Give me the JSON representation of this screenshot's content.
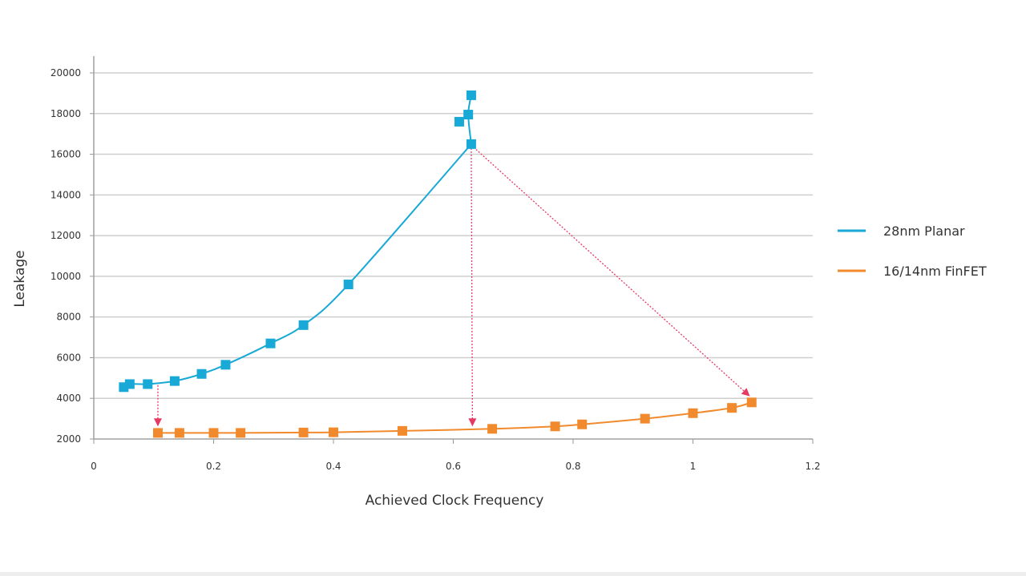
{
  "chart_data": {
    "type": "scatter",
    "xlabel": "Achieved Clock Frequency",
    "ylabel": "Leakage",
    "xlim": [
      0,
      1.2
    ],
    "ylim": [
      2000,
      20000
    ],
    "xticks": [
      "0",
      "0.2",
      "0.4",
      "0.6",
      "0.8",
      "1",
      "1.2"
    ],
    "yticks": [
      "2000",
      "4000",
      "6000",
      "8000",
      "10000",
      "12000",
      "14000",
      "16000",
      "18000",
      "20000"
    ],
    "grid": "horizontal",
    "legend": "right",
    "series": [
      {
        "name": "28nm Planar",
        "color": "#19a9d6",
        "x": [
          0.05,
          0.06,
          0.09,
          0.135,
          0.18,
          0.22,
          0.295,
          0.35,
          0.425,
          0.61,
          0.625,
          0.63,
          0.63
        ],
        "y": [
          4550,
          4700,
          4700,
          4850,
          5200,
          5650,
          6700,
          7600,
          9600,
          17600,
          17950,
          18900,
          16500
        ]
      },
      {
        "name": "16/14nm FinFET",
        "color": "#f08a2c",
        "x": [
          0.107,
          0.143,
          0.2,
          0.245,
          0.35,
          0.4,
          0.515,
          0.665,
          0.77,
          0.815,
          0.92,
          1.0,
          1.065,
          1.098
        ],
        "y": [
          2300,
          2300,
          2300,
          2300,
          2320,
          2330,
          2400,
          2500,
          2620,
          2720,
          3000,
          3270,
          3530,
          3800
        ]
      }
    ],
    "annotations": [
      {
        "type": "arrow",
        "from": [
          0.107,
          4650
        ],
        "to": [
          0.107,
          2620
        ]
      },
      {
        "type": "arrow",
        "from": [
          0.63,
          16300
        ],
        "to": [
          0.632,
          2620
        ]
      },
      {
        "type": "arrow",
        "from": [
          0.63,
          16450
        ],
        "to": [
          1.095,
          4100
        ]
      }
    ],
    "arrow_color": "#e43a64"
  }
}
